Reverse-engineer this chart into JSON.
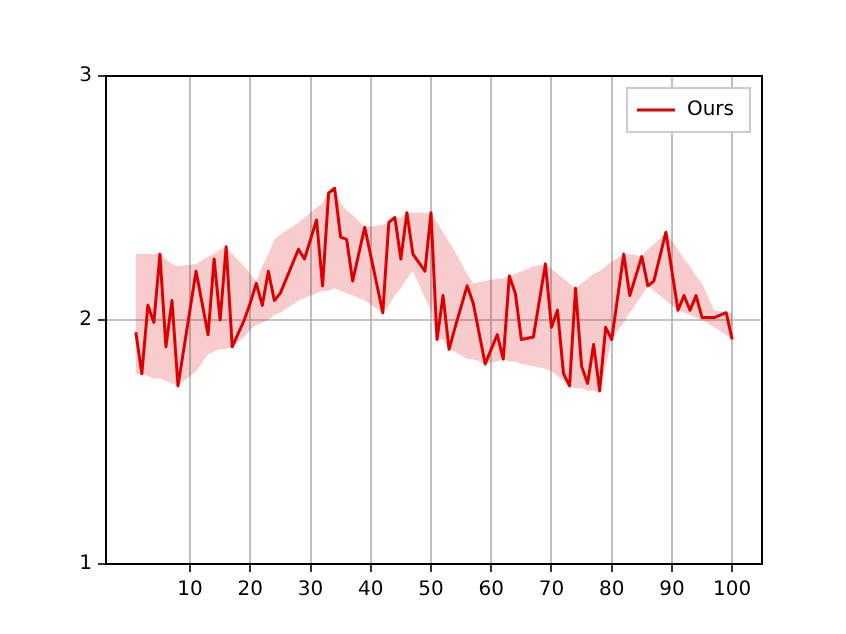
{
  "chart_data": {
    "type": "line",
    "x": [
      1,
      2,
      3,
      4,
      5,
      6,
      7,
      8,
      11,
      13,
      14,
      15,
      16,
      17,
      19,
      20,
      21,
      22,
      23,
      24,
      25,
      28,
      29,
      31,
      32,
      33,
      34,
      35,
      36,
      37,
      39,
      42,
      43,
      44,
      45,
      46,
      47,
      49,
      50,
      51,
      52,
      53,
      54,
      56,
      57,
      59,
      61,
      62,
      63,
      64,
      65,
      67,
      69,
      70,
      71,
      72,
      73,
      74,
      75,
      76,
      77,
      78,
      79,
      80,
      82,
      83,
      85,
      86,
      87,
      89,
      91,
      92,
      93,
      94,
      95,
      97,
      99,
      100
    ],
    "series": [
      {
        "name": "Ours",
        "color": "#dd0000",
        "values": [
          1.95,
          1.78,
          2.06,
          1.99,
          2.27,
          1.89,
          2.08,
          1.73,
          2.2,
          1.94,
          2.25,
          2.0,
          2.3,
          1.89,
          2.0,
          2.07,
          2.15,
          2.06,
          2.2,
          2.08,
          2.11,
          2.29,
          2.25,
          2.41,
          2.14,
          2.52,
          2.54,
          2.34,
          2.33,
          2.16,
          2.38,
          2.03,
          2.4,
          2.42,
          2.25,
          2.44,
          2.27,
          2.2,
          2.44,
          1.92,
          2.1,
          1.88,
          1.97,
          2.14,
          2.07,
          1.82,
          1.94,
          1.84,
          2.18,
          2.11,
          1.92,
          1.93,
          2.23,
          1.97,
          2.04,
          1.78,
          1.73,
          2.13,
          1.81,
          1.74,
          1.9,
          1.71,
          1.97,
          1.92,
          2.27,
          2.1,
          2.26,
          2.14,
          2.16,
          2.36,
          2.04,
          2.1,
          2.04,
          2.1,
          2.01,
          2.01,
          2.03,
          1.92
        ],
        "upper": [
          2.27,
          2.27,
          2.27,
          2.27,
          2.27,
          2.25,
          2.23,
          2.22,
          2.23,
          2.26,
          2.27,
          2.29,
          2.3,
          2.27,
          2.22,
          2.19,
          2.16,
          2.22,
          2.27,
          2.33,
          2.35,
          2.4,
          2.42,
          2.46,
          2.48,
          2.53,
          2.54,
          2.48,
          2.45,
          2.43,
          2.38,
          2.39,
          2.4,
          2.42,
          2.42,
          2.44,
          2.44,
          2.44,
          2.44,
          2.4,
          2.36,
          2.32,
          2.28,
          2.19,
          2.15,
          2.16,
          2.17,
          2.17,
          2.18,
          2.19,
          2.2,
          2.22,
          2.23,
          2.21,
          2.19,
          2.17,
          2.15,
          2.13,
          2.15,
          2.17,
          2.19,
          2.2,
          2.22,
          2.24,
          2.27,
          2.27,
          2.26,
          2.29,
          2.31,
          2.36,
          2.29,
          2.25,
          2.22,
          2.18,
          2.15,
          2.04,
          2.03,
          2.03
        ],
        "lower": [
          1.78,
          1.78,
          1.77,
          1.76,
          1.76,
          1.75,
          1.74,
          1.73,
          1.79,
          1.86,
          1.87,
          1.88,
          1.88,
          1.89,
          1.93,
          1.96,
          1.98,
          1.99,
          2.0,
          2.02,
          2.03,
          2.08,
          2.09,
          2.11,
          2.12,
          2.12,
          2.13,
          2.12,
          2.11,
          2.1,
          2.08,
          2.03,
          2.06,
          2.1,
          2.13,
          2.17,
          2.2,
          2.09,
          2.04,
          1.92,
          1.92,
          1.88,
          1.87,
          1.84,
          1.84,
          1.82,
          1.83,
          1.84,
          1.83,
          1.83,
          1.82,
          1.81,
          1.8,
          1.79,
          1.77,
          1.75,
          1.73,
          1.72,
          1.72,
          1.71,
          1.71,
          1.7,
          1.81,
          1.92,
          1.99,
          2.03,
          2.1,
          2.14,
          2.12,
          2.08,
          2.04,
          2.03,
          2.02,
          2.01,
          2.0,
          1.97,
          1.94,
          1.92
        ]
      }
    ],
    "xlim": [
      -3.95,
      104.95
    ],
    "xticks": [
      10,
      20,
      30,
      40,
      50,
      60,
      70,
      80,
      90,
      100
    ],
    "ylim": [
      1,
      3
    ],
    "yticks": [
      1,
      2,
      3
    ],
    "grid": true,
    "legend": "top right",
    "marker": "none",
    "line_style": "solid"
  }
}
